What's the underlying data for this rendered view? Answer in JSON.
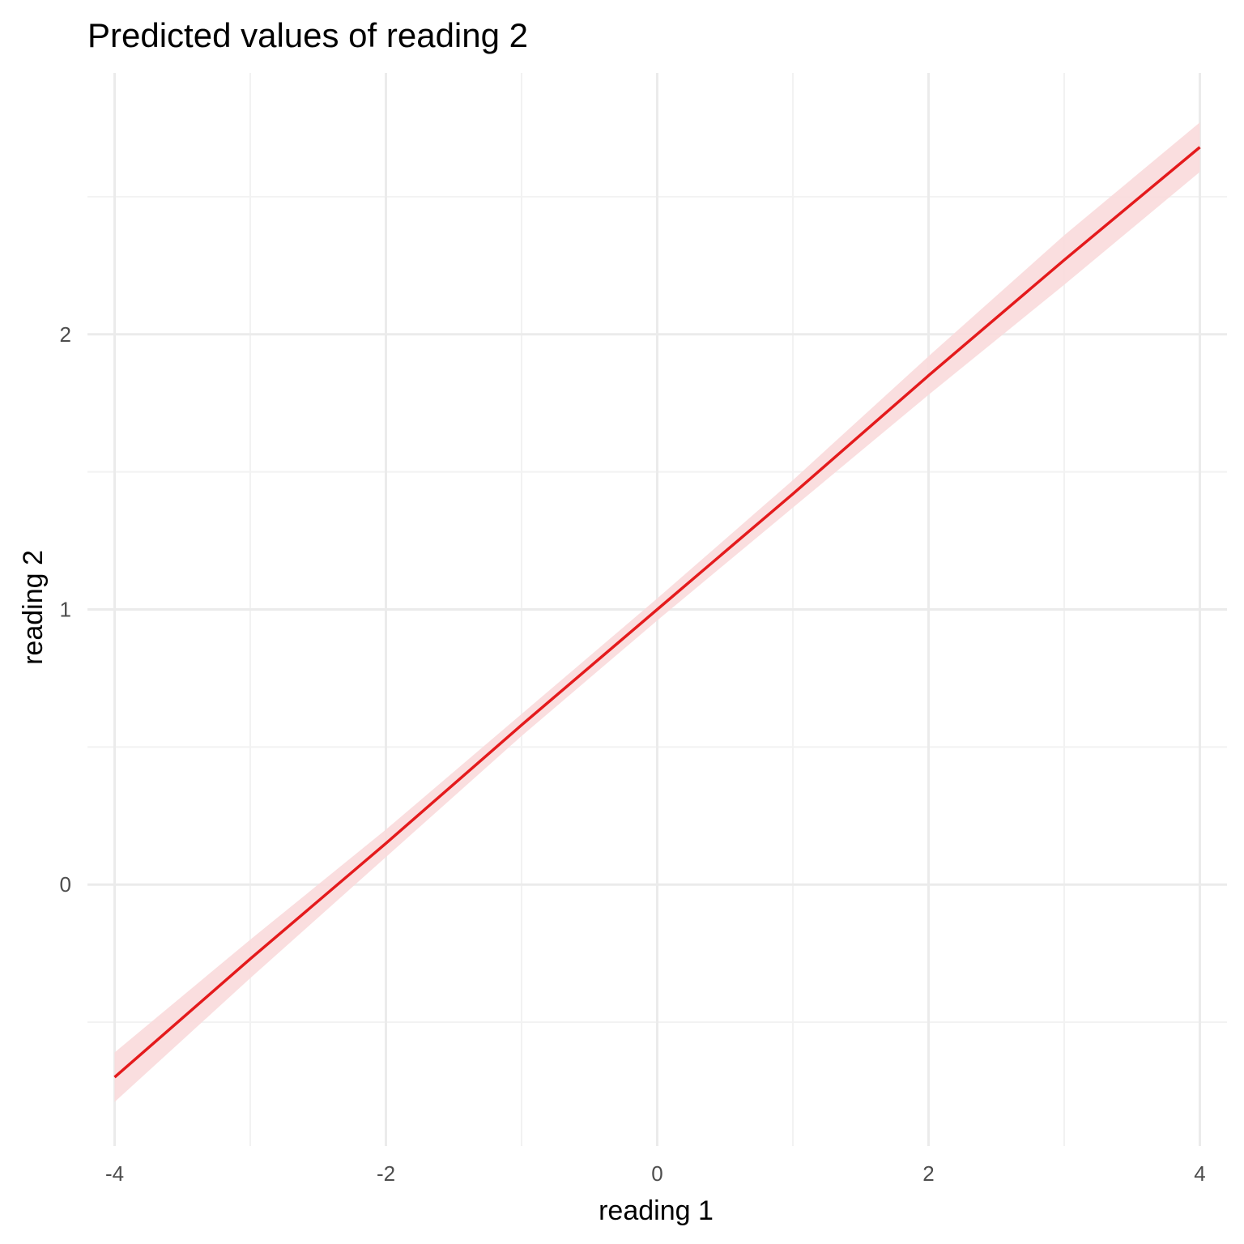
{
  "chart_data": {
    "type": "line",
    "title": "Predicted values of reading 2",
    "xlabel": "reading 1",
    "ylabel": "reading 2",
    "xlim": [
      -4.2,
      4.2
    ],
    "ylim": [
      -0.95,
      2.95
    ],
    "x_ticks": [
      -4,
      -2,
      0,
      2,
      4
    ],
    "x_tick_labels": [
      "-4",
      "-2",
      "0",
      "2",
      "4"
    ],
    "x_minor_ticks": [
      -3,
      -1,
      1,
      3
    ],
    "y_ticks": [
      0,
      1,
      2
    ],
    "y_tick_labels": [
      "0",
      "1",
      "2"
    ],
    "y_minor_ticks": [
      -0.5,
      0.5,
      1.5,
      2.5
    ],
    "grid": true,
    "legend": "none",
    "series": [
      {
        "x": [
          -4,
          -3,
          -2,
          -1,
          0,
          1,
          2,
          3,
          4
        ],
        "y": [
          -0.7,
          -0.27,
          0.15,
          0.58,
          1.0,
          1.42,
          1.85,
          2.27,
          2.68
        ],
        "ci_lower": [
          -0.79,
          -0.34,
          0.1,
          0.54,
          0.96,
          1.37,
          1.78,
          2.18,
          2.59
        ],
        "ci_upper": [
          -0.61,
          -0.2,
          0.2,
          0.62,
          1.04,
          1.47,
          1.92,
          2.36,
          2.77
        ],
        "color": "#e41a1c",
        "band_color": "#fadadb"
      }
    ]
  }
}
